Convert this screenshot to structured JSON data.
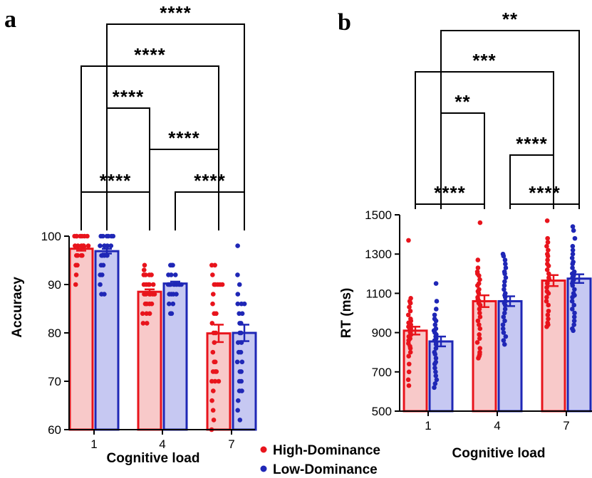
{
  "legend": {
    "items": [
      {
        "label": "High-Dominance",
        "color": "#e8141c"
      },
      {
        "label": "Low-Dominance",
        "color": "#1f27b6"
      }
    ]
  },
  "chart_data": [
    {
      "panel_label": "a",
      "type": "bar",
      "xlabel": "Cognitive load",
      "ylabel": "Accuracy",
      "categories": [
        "1",
        "4",
        "7"
      ],
      "ylim": [
        60,
        100
      ],
      "yticks": [
        60,
        70,
        80,
        90,
        100
      ],
      "grid": false,
      "series": [
        {
          "name": "High-Dominance",
          "color": "#e8141c",
          "fill": "#f8c9c9",
          "values": [
            97.4,
            88.5,
            79.9
          ],
          "sem": [
            0.4,
            0.5,
            1.8
          ],
          "points": [
            [
              100,
              100,
              100,
              100,
              100,
              100,
              100,
              98,
              98,
              98,
              98,
              98,
              98,
              96,
              96,
              96,
              96,
              94,
              94,
              92,
              90
            ],
            [
              94,
              93,
              92,
              92,
              92,
              92,
              90,
              90,
              90,
              90,
              90,
              88,
              88,
              88,
              88,
              88,
              88,
              86,
              86,
              86,
              86,
              84,
              84,
              84,
              82,
              82
            ],
            [
              94,
              94,
              92,
              90,
              90,
              90,
              90,
              90,
              88,
              86,
              84,
              84,
              82,
              80,
              80,
              78,
              76,
              74,
              74,
              72,
              72,
              72,
              70,
              70,
              70,
              68,
              66,
              64,
              62,
              60
            ]
          ]
        },
        {
          "name": "Low-Dominance",
          "color": "#1f27b6",
          "fill": "#c6c8f2",
          "values": [
            96.9,
            90.2,
            80.0
          ],
          "sem": [
            0.5,
            0.4,
            1.7
          ],
          "points": [
            [
              100,
              100,
              100,
              100,
              100,
              100,
              98,
              98,
              98,
              98,
              98,
              96,
              96,
              96,
              96,
              94,
              94,
              92,
              92,
              90,
              88,
              88
            ],
            [
              94,
              94,
              94,
              92,
              92,
              92,
              90,
              90,
              90,
              90,
              90,
              90,
              90,
              88,
              88,
              88,
              88,
              86,
              86,
              84,
              84
            ],
            [
              98,
              92,
              90,
              88,
              86,
              86,
              86,
              84,
              84,
              82,
              82,
              80,
              80,
              78,
              78,
              76,
              76,
              74,
              74,
              72,
              72,
              70,
              70,
              68,
              68,
              66,
              64,
              62
            ]
          ]
        }
      ],
      "significance": [
        "****",
        "****",
        "****",
        "****",
        "****",
        "****"
      ]
    },
    {
      "panel_label": "b",
      "type": "bar",
      "xlabel": "Cognitive load",
      "ylabel": "RT (ms)",
      "categories": [
        "1",
        "4",
        "7"
      ],
      "ylim": [
        500,
        1500
      ],
      "yticks": [
        500,
        700,
        900,
        1100,
        1300,
        1500
      ],
      "grid": false,
      "series": [
        {
          "name": "High-Dominance",
          "color": "#e8141c",
          "fill": "#f8c9c9",
          "values": [
            910,
            1060,
            1165
          ],
          "sem": [
            20,
            30,
            28
          ],
          "points": [
            [
              1370,
              1075,
              1060,
              1050,
              1030,
              1010,
              990,
              970,
              960,
              950,
              940,
              930,
              925,
              920,
              915,
              910,
              905,
              900,
              890,
              880,
              870,
              860,
              845,
              830,
              820,
              800,
              780,
              740,
              700,
              660,
              630
            ],
            [
              1460,
              1270,
              1230,
              1210,
              1200,
              1190,
              1170,
              1150,
              1140,
              1120,
              1110,
              1100,
              1080,
              1070,
              1060,
              1050,
              1040,
              1020,
              1000,
              980,
              960,
              940,
              920,
              890,
              870,
              850,
              820,
              800,
              790,
              780,
              770
            ],
            [
              1470,
              1380,
              1360,
              1340,
              1320,
              1300,
              1290,
              1270,
              1250,
              1240,
              1220,
              1200,
              1180,
              1170,
              1160,
              1150,
              1130,
              1110,
              1100,
              1080,
              1060,
              1040,
              1010,
              990,
              970,
              950,
              940,
              930
            ]
          ]
        },
        {
          "name": "Low-Dominance",
          "color": "#1f27b6",
          "fill": "#c6c8f2",
          "values": [
            855,
            1060,
            1175
          ],
          "sem": [
            25,
            25,
            22
          ],
          "points": [
            [
              1150,
              1060,
              1020,
              990,
              970,
              960,
              940,
              920,
              910,
              900,
              890,
              880,
              870,
              860,
              850,
              840,
              820,
              800,
              790,
              770,
              750,
              740,
              720,
              700,
              680,
              660,
              640,
              620
            ],
            [
              1300,
              1290,
              1270,
              1250,
              1230,
              1210,
              1200,
              1180,
              1160,
              1140,
              1120,
              1100,
              1090,
              1080,
              1060,
              1050,
              1040,
              1020,
              1000,
              980,
              960,
              940,
              920,
              900,
              880,
              860,
              840
            ],
            [
              1440,
              1420,
              1380,
              1340,
              1320,
              1300,
              1280,
              1260,
              1250,
              1230,
              1210,
              1200,
              1190,
              1180,
              1170,
              1160,
              1150,
              1140,
              1120,
              1100,
              1090,
              1080,
              1060,
              1040,
              1020,
              1000,
              980,
              960,
              940,
              920,
              910
            ]
          ]
        }
      ],
      "significance": [
        "****",
        "****",
        "****",
        "**",
        "***",
        "**"
      ]
    }
  ]
}
